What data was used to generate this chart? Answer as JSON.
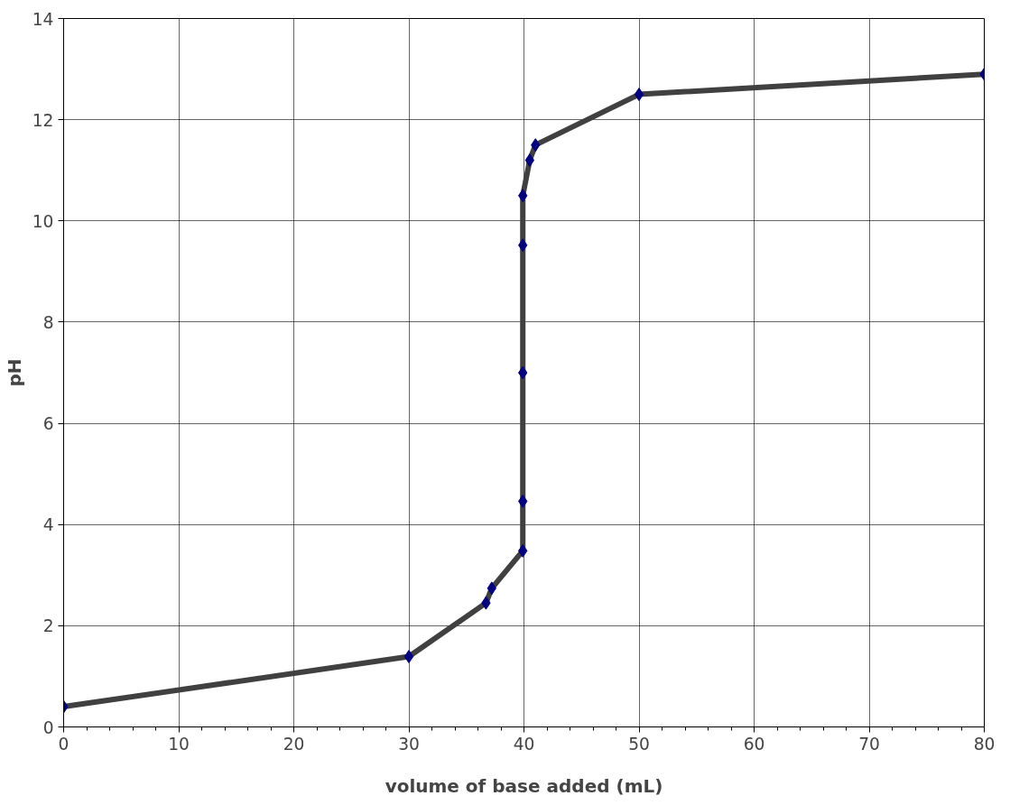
{
  "chart_data": {
    "type": "line",
    "xlabel": "volume of base added (mL)",
    "ylabel": "pH",
    "xlim": [
      0,
      80
    ],
    "xticks": [
      0,
      10,
      20,
      30,
      40,
      50,
      60,
      70,
      80
    ],
    "ylim": [
      0,
      14
    ],
    "yticks": [
      0,
      2,
      4,
      6,
      8,
      10,
      12,
      14
    ],
    "grid": true,
    "series": [
      {
        "color": "#404040",
        "line_style": "solid",
        "marker": "none",
        "x": [
          0,
          30,
          36.7,
          37.2,
          39.9,
          39.9,
          39.9,
          39.9,
          39.9,
          40.5,
          41,
          50,
          80
        ],
        "values": [
          0.4,
          1.39,
          2.45,
          2.74,
          3.48,
          4.46,
          7.0,
          9.52,
          10.5,
          11.2,
          11.5,
          12.5,
          12.9
        ]
      },
      {
        "type": "scatter",
        "color": "#000080",
        "marker": "diamond",
        "x": [
          0,
          30,
          36.7,
          37.2,
          39.9,
          39.9,
          39.9,
          39.9,
          39.9,
          40.5,
          41,
          50,
          80
        ],
        "values": [
          0.4,
          1.39,
          2.45,
          2.74,
          3.48,
          4.46,
          7.0,
          9.52,
          10.5,
          11.2,
          11.5,
          12.5,
          12.9
        ]
      }
    ]
  }
}
